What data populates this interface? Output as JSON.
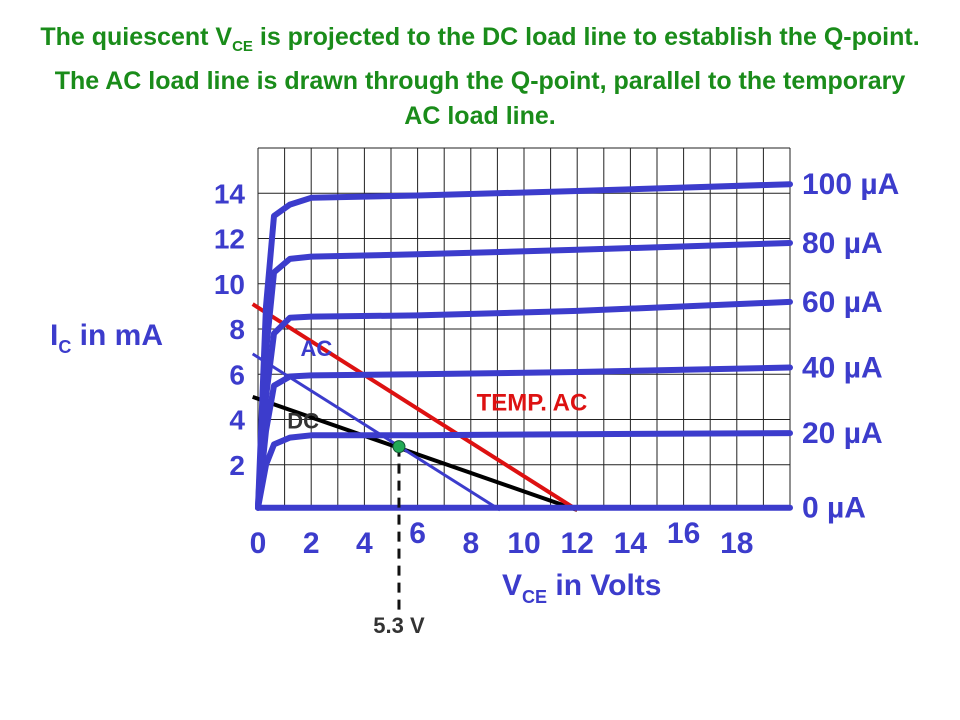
{
  "caption": {
    "part1": "The quiescent V",
    "sub": "CE",
    "part2": " is projected to the DC load line to establish the Q-point.  The AC load line is drawn through the Q-point, parallel to the temporary AC load line."
  },
  "chart_data": {
    "type": "line",
    "xlabel": "V",
    "xlabel_sub": "CE",
    "xlabel_suffix": " in Volts",
    "ylabel": "I",
    "ylabel_sub": "C",
    "ylabel_suffix": " in mA",
    "xlim": [
      0,
      20
    ],
    "ylim": [
      0,
      16
    ],
    "x_ticks": [
      "0",
      "2",
      "4",
      "6",
      "8",
      "10",
      "12",
      "14",
      "16",
      "18"
    ],
    "y_ticks": [
      "2",
      "4",
      "6",
      "8",
      "10",
      "12",
      "14"
    ],
    "grid": true,
    "curves": [
      {
        "name": "0 µA",
        "color": "#3c3ccc",
        "points": [
          [
            0,
            0.1
          ],
          [
            20,
            0.1
          ]
        ]
      },
      {
        "name": "20 µA",
        "color": "#3c3ccc",
        "points": [
          [
            0,
            0.1
          ],
          [
            0.3,
            2
          ],
          [
            0.6,
            2.9
          ],
          [
            1.2,
            3.2
          ],
          [
            2,
            3.3
          ],
          [
            6,
            3.3
          ],
          [
            12,
            3.35
          ],
          [
            20,
            3.4
          ]
        ]
      },
      {
        "name": "40 µA",
        "color": "#3c3ccc",
        "points": [
          [
            0,
            0.1
          ],
          [
            0.3,
            3.5
          ],
          [
            0.6,
            5.5
          ],
          [
            1.2,
            5.9
          ],
          [
            2,
            5.95
          ],
          [
            6,
            6
          ],
          [
            12,
            6.1
          ],
          [
            20,
            6.3
          ]
        ]
      },
      {
        "name": "60 µA",
        "color": "#3c3ccc",
        "points": [
          [
            0,
            0.1
          ],
          [
            0.3,
            5
          ],
          [
            0.6,
            7.8
          ],
          [
            1.2,
            8.5
          ],
          [
            2,
            8.55
          ],
          [
            6,
            8.6
          ],
          [
            12,
            8.8
          ],
          [
            20,
            9.2
          ]
        ]
      },
      {
        "name": "80 µA",
        "color": "#3c3ccc",
        "points": [
          [
            0,
            0.1
          ],
          [
            0.3,
            7
          ],
          [
            0.6,
            10.5
          ],
          [
            1.2,
            11.1
          ],
          [
            2,
            11.2
          ],
          [
            6,
            11.3
          ],
          [
            12,
            11.5
          ],
          [
            20,
            11.8
          ]
        ]
      },
      {
        "name": "100 µA",
        "color": "#3c3ccc",
        "points": [
          [
            0,
            0.1
          ],
          [
            0.3,
            9
          ],
          [
            0.6,
            13
          ],
          [
            1.2,
            13.5
          ],
          [
            2,
            13.8
          ],
          [
            6,
            13.9
          ],
          [
            12,
            14.1
          ],
          [
            20,
            14.4
          ]
        ]
      }
    ],
    "lines": [
      {
        "name": "DC",
        "color": "#000000",
        "points": [
          [
            -0.2,
            5
          ],
          [
            12,
            0
          ]
        ],
        "label_at": [
          1.1,
          3.6
        ]
      },
      {
        "name": "TEMP. AC",
        "color": "#dd1111",
        "points": [
          [
            -0.2,
            9.1
          ],
          [
            12,
            0
          ]
        ],
        "label_at": [
          10.3,
          4.4
        ]
      },
      {
        "name": "AC",
        "color": "#3c3ccc",
        "points": [
          [
            -0.2,
            6.9
          ],
          [
            9.1,
            0
          ]
        ],
        "label_at": [
          1.6,
          6.8
        ]
      }
    ],
    "q_point": {
      "x": 5.3,
      "y": 2.8,
      "label": "5.3 V"
    }
  }
}
